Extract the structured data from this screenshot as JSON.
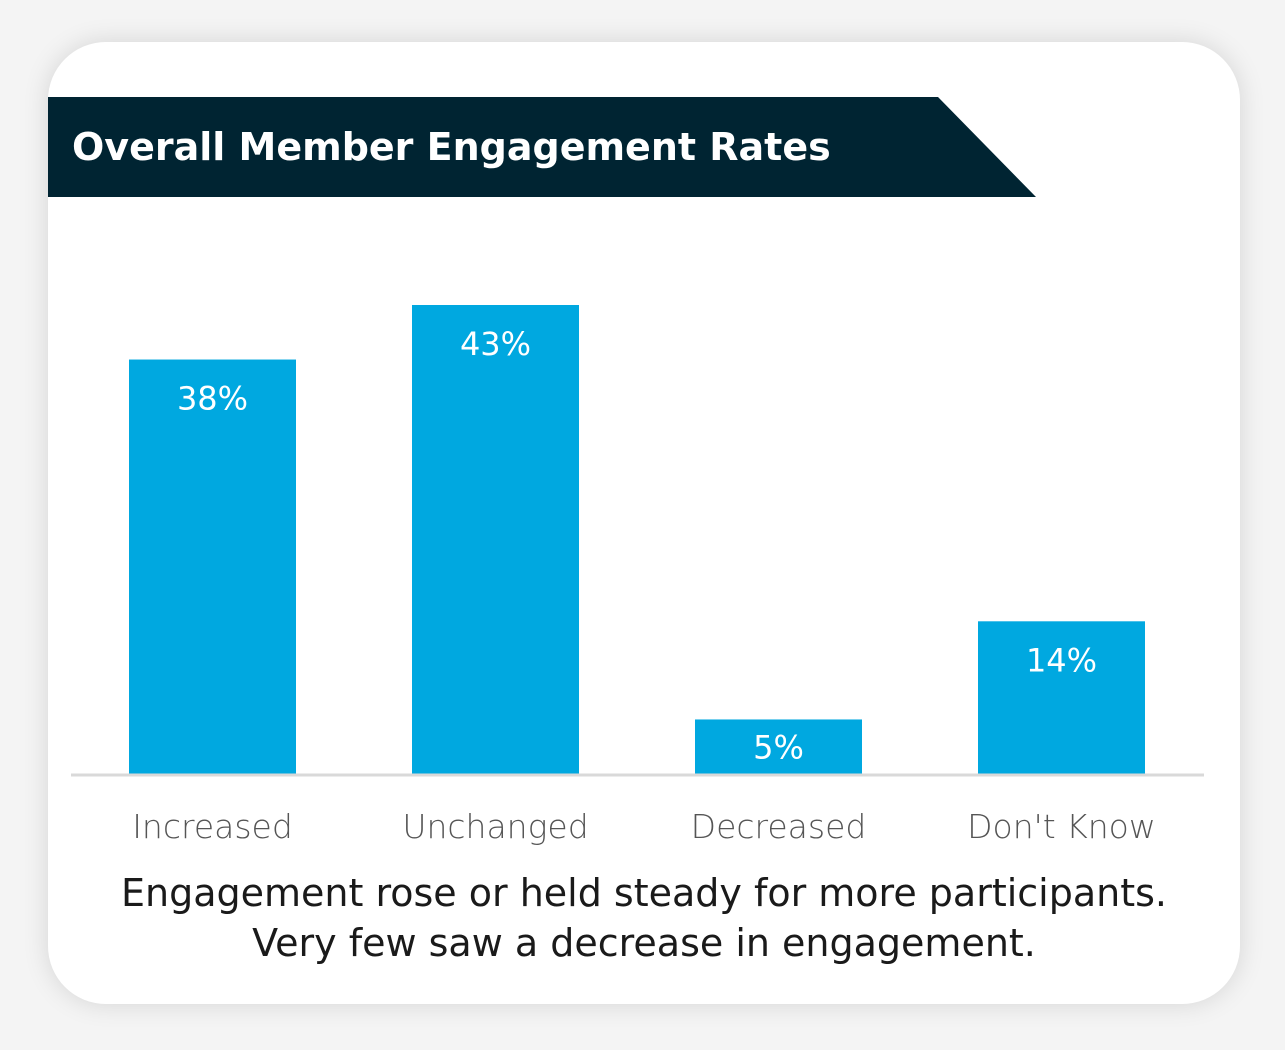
{
  "header": {
    "title": "Overall Member Engagement Rates"
  },
  "colors": {
    "banner": "#002432",
    "bar": "#00a8e0",
    "bar_text": "#ffffff",
    "axis": "#d9d9d9",
    "category_text": "#555555",
    "caption_text": "#1a1a1a"
  },
  "chart_data": {
    "type": "bar",
    "title": "Overall Member Engagement Rates",
    "categories": [
      "Increased",
      "Unchanged",
      "Decreased",
      "Don't Know"
    ],
    "values": [
      38,
      43,
      5,
      14
    ],
    "value_labels": [
      "38%",
      "43%",
      "5%",
      "14%"
    ],
    "xlabel": "",
    "ylabel": "",
    "ylim": [
      0,
      43
    ],
    "grid": false,
    "legend": "none"
  },
  "caption": {
    "line1": "Engagement rose or held steady for more participants.",
    "line2": "Very few saw a decrease in engagement."
  }
}
